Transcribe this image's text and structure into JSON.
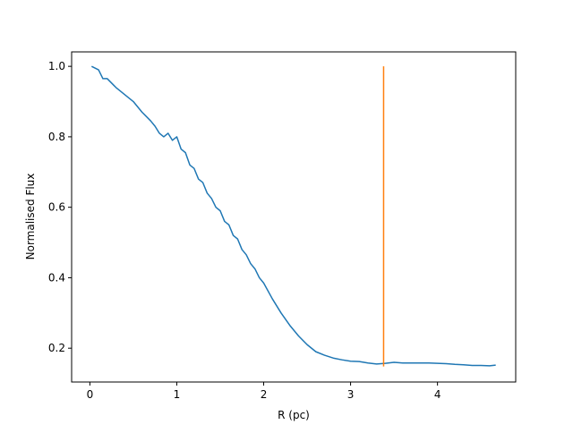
{
  "chart_data": {
    "type": "line",
    "x_label": "R (pc)",
    "y_label": "Normalised Flux",
    "xlim": [
      -0.21,
      4.9
    ],
    "ylim": [
      0.104,
      1.041
    ],
    "xticks": [
      0,
      1,
      2,
      3,
      4
    ],
    "yticks": [
      0.2,
      0.4,
      0.6,
      0.8,
      {
        "value": 1,
        "label": "1.0"
      }
    ],
    "series": [
      {
        "color": "#1f77b4",
        "x": [
          0.02,
          0.1,
          0.15,
          0.2,
          0.3,
          0.4,
          0.5,
          0.6,
          0.7,
          0.75,
          0.8,
          0.85,
          0.9,
          0.95,
          1.0,
          1.05,
          1.1,
          1.15,
          1.2,
          1.25,
          1.3,
          1.35,
          1.4,
          1.45,
          1.5,
          1.55,
          1.6,
          1.65,
          1.7,
          1.75,
          1.8,
          1.85,
          1.9,
          1.95,
          2.0,
          2.1,
          2.2,
          2.3,
          2.4,
          2.5,
          2.6,
          2.7,
          2.8,
          2.9,
          3.0,
          3.1,
          3.2,
          3.3,
          3.4,
          3.5,
          3.6,
          3.7,
          3.8,
          3.9,
          4.0,
          4.1,
          4.2,
          4.3,
          4.4,
          4.5,
          4.6,
          4.67
        ],
        "values": [
          1.0,
          0.99,
          0.965,
          0.965,
          0.94,
          0.92,
          0.9,
          0.87,
          0.845,
          0.83,
          0.81,
          0.8,
          0.81,
          0.79,
          0.8,
          0.765,
          0.755,
          0.72,
          0.71,
          0.68,
          0.67,
          0.64,
          0.625,
          0.6,
          0.59,
          0.56,
          0.55,
          0.52,
          0.51,
          0.48,
          0.465,
          0.44,
          0.425,
          0.4,
          0.385,
          0.34,
          0.3,
          0.265,
          0.235,
          0.21,
          0.19,
          0.18,
          0.172,
          0.167,
          0.163,
          0.162,
          0.158,
          0.155,
          0.157,
          0.16,
          0.158,
          0.158,
          0.158,
          0.158,
          0.157,
          0.156,
          0.154,
          0.153,
          0.151,
          0.151,
          0.15,
          0.152
        ]
      },
      {
        "color": "#ff7f0e",
        "x": [
          3.38,
          3.38
        ],
        "values": [
          0.148,
          1.0
        ]
      }
    ]
  }
}
